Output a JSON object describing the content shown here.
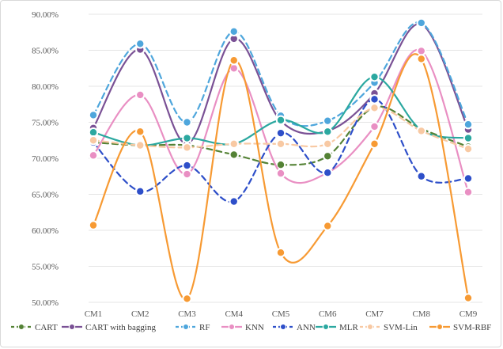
{
  "chart_data": {
    "type": "line",
    "title": "",
    "xlabel": "",
    "ylabel": "",
    "ylim": [
      50,
      90
    ],
    "yticks": [
      50,
      55,
      60,
      65,
      70,
      75,
      80,
      85,
      90
    ],
    "ytick_labels": [
      "50.00%",
      "55.00%",
      "60.00%",
      "65.00%",
      "70.00%",
      "75.00%",
      "80.00%",
      "85.00%",
      "90.00%"
    ],
    "categories": [
      "CM1",
      "CM2",
      "CM3",
      "CM4",
      "CM5",
      "CM6",
      "CM7",
      "CM8",
      "CM9"
    ],
    "grid": "horizontal",
    "legend_position": "bottom",
    "series": [
      {
        "name": "CART",
        "color": "#548235",
        "dash": "dashed",
        "values": [
          72.2,
          71.8,
          71.8,
          70.5,
          69.1,
          70.3,
          77.1,
          74.1,
          71.6
        ]
      },
      {
        "name": "CART with bagging",
        "color": "#7a5195",
        "dash": "solid",
        "values": [
          74.2,
          85.1,
          72.0,
          86.6,
          75.2,
          73.8,
          79.0,
          88.6,
          74.0
        ]
      },
      {
        "name": "RF",
        "color": "#4ea6dc",
        "dash": "dashed",
        "values": [
          76.0,
          85.9,
          75.0,
          87.6,
          75.9,
          75.2,
          80.5,
          88.8,
          74.7
        ]
      },
      {
        "name": "KNN",
        "color": "#e98fc3",
        "dash": "solid",
        "values": [
          70.4,
          78.8,
          67.8,
          82.5,
          67.9,
          68.0,
          74.4,
          84.9,
          65.3
        ]
      },
      {
        "name": "ANN",
        "color": "#2e4fc9",
        "dash": "dashed",
        "values": [
          72.2,
          65.4,
          69.0,
          64.0,
          73.5,
          68.0,
          78.2,
          67.5,
          67.2
        ]
      },
      {
        "name": "MLR",
        "color": "#2ba8a0",
        "dash": "solid",
        "values": [
          73.6,
          71.8,
          72.8,
          72.0,
          75.3,
          73.7,
          81.3,
          73.9,
          72.8
        ]
      },
      {
        "name": "SVM-Lin",
        "color": "#f8c9a3",
        "dash": "dashed",
        "values": [
          72.5,
          71.8,
          71.5,
          72.0,
          72.0,
          72.0,
          77.0,
          73.8,
          71.3
        ]
      },
      {
        "name": "SVM-RBF",
        "color": "#f79a33",
        "dash": "solid",
        "values": [
          60.7,
          73.7,
          50.5,
          83.6,
          56.9,
          60.6,
          72.0,
          83.8,
          50.6
        ]
      }
    ]
  }
}
